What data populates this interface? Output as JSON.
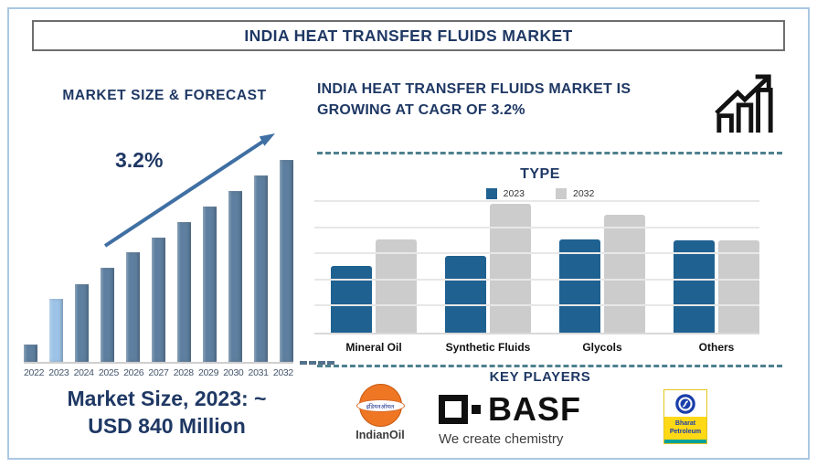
{
  "page_title": "INDIA HEAT TRANSFER FLUIDS MARKET",
  "colors": {
    "navy_text": "#1f3864",
    "steel_bar": "#5e7f9f",
    "highlight_bar": "#9dc3e6",
    "arrow": "#3f6fa3",
    "type_blue": "#1f6191",
    "type_gray": "#cccccc",
    "dashed_separator": "#4e808e",
    "outer_border": "#a9c7e2",
    "title_box_border": "#6e6e6e",
    "year_label": "#44546a",
    "gridline": "#e7e7e7",
    "indianoil_orange": "#ef7623",
    "bp_yellow": "#ffd816",
    "bp_blue": "#1a3faa",
    "bp_teal": "#00a09b"
  },
  "left_panel": {
    "heading": "MARKET SIZE & FORECAST",
    "market_size_note": "Market Size, 2023: ~\nUSD 840 Million"
  },
  "right_panel": {
    "heading": "INDIA HEAT TRANSFER FLUIDS MARKET IS\nGROWING AT CAGR OF 3.2%",
    "type_section_title": "TYPE",
    "key_players_title": "KEY PLAYERS",
    "players": [
      {
        "name": "IndianOil",
        "logo_text_hindi": "इंडियनऑयल",
        "label": "IndianOil"
      },
      {
        "name": "BASF",
        "tagline": "We create chemistry"
      },
      {
        "name": "Bharat Petroleum",
        "label": "Bharat\nPetroleum"
      }
    ]
  },
  "chart_data": [
    {
      "type": "bar",
      "title": "MARKET SIZE & FORECAST",
      "annotation": "3.2%",
      "categories": [
        "2022",
        "2023",
        "2024",
        "2025",
        "2026",
        "2027",
        "2028",
        "2029",
        "2030",
        "2031",
        "2032"
      ],
      "values": [
        19,
        69,
        85,
        103,
        120,
        136,
        153,
        170,
        187,
        204,
        221
      ],
      "ylim": [
        0,
        230
      ],
      "value_note": "relative bar heights, no y-axis shown; 2023 ≈ USD 840 Million",
      "highlight_index": 1,
      "bar_color": "#5e7f9f",
      "highlight_color": "#9dc3e6",
      "grid": false,
      "legend_position": "none"
    },
    {
      "type": "bar",
      "title": "TYPE",
      "categories": [
        "Mineral Oil",
        "Synthetic Fluids",
        "Glycols",
        "Others"
      ],
      "series": [
        {
          "name": "2023",
          "color": "#1f6191",
          "values": [
            74,
            85,
            103,
            102
          ]
        },
        {
          "name": "2032",
          "color": "#cccccc",
          "values": [
            103,
            143,
            131,
            102
          ]
        }
      ],
      "ylim": [
        0,
        145
      ],
      "value_note": "relative bar heights, no y-axis shown",
      "grid": true,
      "legend_position": "top"
    }
  ]
}
